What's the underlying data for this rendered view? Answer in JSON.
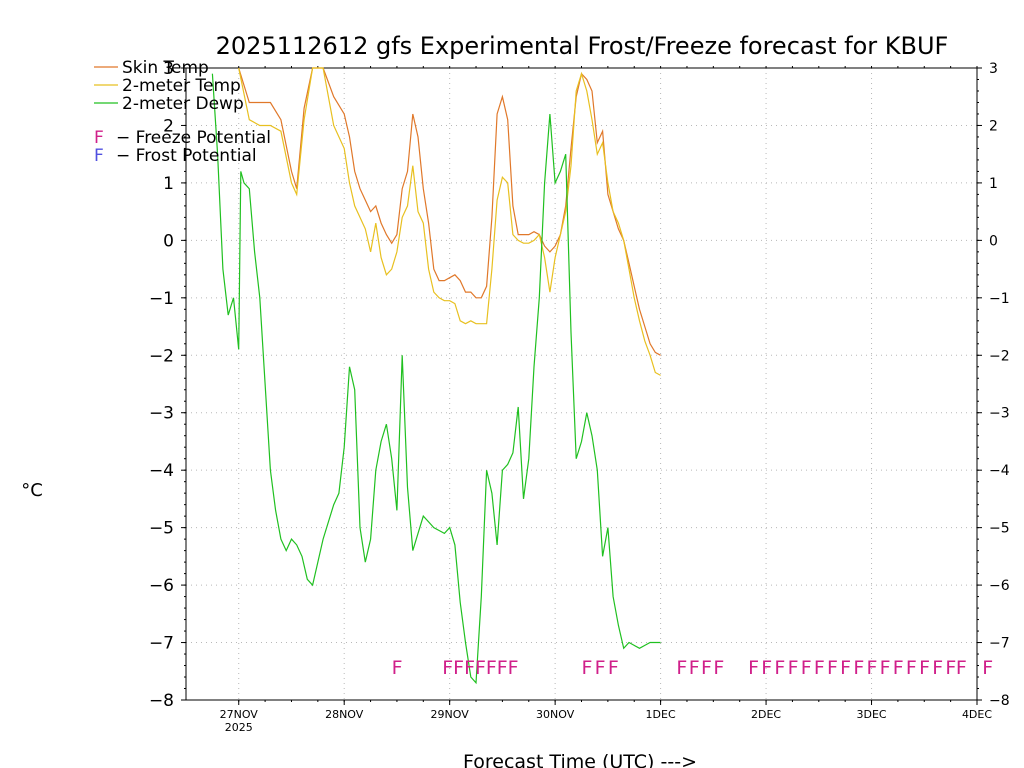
{
  "chart_data": {
    "type": "line",
    "title": "2025112612 gfs Experimental Frost/Freeze forecast for KBUF",
    "ylabel": "°C",
    "xlabel": "Forecast Time (UTC) --->",
    "ylim": [
      -8,
      3
    ],
    "xlim": [
      -0.5,
      7.0
    ],
    "grid": true,
    "x_ticks": [
      {
        "v": 0,
        "label": "27NOV",
        "sub": "2025"
      },
      {
        "v": 1,
        "label": "28NOV",
        "sub": ""
      },
      {
        "v": 2,
        "label": "29NOV",
        "sub": ""
      },
      {
        "v": 3,
        "label": "30NOV",
        "sub": ""
      },
      {
        "v": 4,
        "label": "1DEC",
        "sub": ""
      },
      {
        "v": 5,
        "label": "2DEC",
        "sub": ""
      },
      {
        "v": 6,
        "label": "3DEC",
        "sub": ""
      },
      {
        "v": 7,
        "label": "4DEC",
        "sub": ""
      }
    ],
    "y_ticks": [
      3,
      2,
      1,
      0,
      -1,
      -2,
      -3,
      -4,
      -5,
      -6,
      -7,
      -8
    ],
    "y_tick_labels": [
      "3",
      "2",
      "1",
      "0",
      "−1",
      "−2",
      "−3",
      "−4",
      "−5",
      "−6",
      "−7",
      "−8"
    ],
    "legend": {
      "position": "top-left",
      "entries": [
        {
          "label": "Skin Temp",
          "color": "#e0782a"
        },
        {
          "label": "2-meter Temp",
          "color": "#e8c020"
        },
        {
          "label": "2-meter Dewp",
          "color": "#20c020"
        }
      ],
      "notes": [
        {
          "marker": "F",
          "text": "− Freeze Potential",
          "color": "#d0208a"
        },
        {
          "marker": "F",
          "text": "− Frost Potential",
          "color": "#5050e0"
        }
      ]
    },
    "series": [
      {
        "name": "Skin Temp",
        "color": "#e0782a",
        "x": [
          0.0,
          0.1,
          0.2,
          0.3,
          0.4,
          0.5,
          0.55,
          0.62,
          0.7,
          0.8,
          0.9,
          1.0,
          1.05,
          1.1,
          1.15,
          1.2,
          1.25,
          1.3,
          1.35,
          1.4,
          1.45,
          1.5,
          1.55,
          1.6,
          1.65,
          1.7,
          1.75,
          1.8,
          1.85,
          1.9,
          1.95,
          2.0,
          2.05,
          2.1,
          2.15,
          2.2,
          2.25,
          2.3,
          2.35,
          2.4,
          2.45,
          2.5,
          2.55,
          2.6,
          2.65,
          2.7,
          2.75,
          2.8,
          2.85,
          2.9,
          2.95,
          3.0,
          3.05,
          3.1,
          3.15,
          3.2,
          3.25,
          3.3,
          3.35,
          3.4,
          3.45,
          3.5,
          3.55,
          3.6,
          3.65,
          3.7,
          3.75,
          3.8,
          3.85,
          3.9,
          3.95,
          4.0,
          4.05,
          4.1,
          4.15,
          4.2,
          4.25,
          4.3,
          4.35,
          4.4,
          4.45,
          4.5
        ],
        "values": [
          3.0,
          2.4,
          2.4,
          2.4,
          2.1,
          1.2,
          0.9,
          2.3,
          3.0,
          3.0,
          2.5,
          2.2,
          1.8,
          1.2,
          0.9,
          0.7,
          0.5,
          0.6,
          0.3,
          0.1,
          -0.05,
          0.1,
          0.9,
          1.2,
          2.2,
          1.8,
          0.9,
          0.3,
          -0.5,
          -0.7,
          -0.7,
          -0.65,
          -0.6,
          -0.7,
          -0.9,
          -0.9,
          -1.0,
          -1.0,
          -0.8,
          0.4,
          2.2,
          2.5,
          2.1,
          0.6,
          0.1,
          0.1,
          0.1,
          0.15,
          0.1,
          -0.1,
          -0.2,
          -0.1,
          0.1,
          0.6,
          1.6,
          2.5,
          2.9,
          2.8,
          2.6,
          1.7,
          1.9,
          0.8,
          0.5,
          0.2,
          0.0,
          -0.4,
          -0.8,
          -1.2,
          -1.5,
          -1.8,
          -1.95,
          -2.0,
          null,
          null,
          null,
          null,
          null,
          null,
          null,
          null,
          null,
          null
        ]
      },
      {
        "name": "2-meter Temp",
        "color": "#e8c020",
        "x": [
          0.0,
          0.1,
          0.2,
          0.3,
          0.4,
          0.5,
          0.55,
          0.62,
          0.7,
          0.8,
          0.9,
          1.0,
          1.05,
          1.1,
          1.15,
          1.2,
          1.25,
          1.3,
          1.35,
          1.4,
          1.45,
          1.5,
          1.55,
          1.6,
          1.65,
          1.7,
          1.75,
          1.8,
          1.85,
          1.9,
          1.95,
          2.0,
          2.05,
          2.1,
          2.15,
          2.2,
          2.25,
          2.3,
          2.35,
          2.4,
          2.45,
          2.5,
          2.55,
          2.6,
          2.65,
          2.7,
          2.75,
          2.8,
          2.85,
          2.9,
          2.95,
          3.0,
          3.05,
          3.1,
          3.15,
          3.2,
          3.25,
          3.3,
          3.35,
          3.4,
          3.45,
          3.5,
          3.55,
          3.6,
          3.65,
          3.7,
          3.75,
          3.8,
          3.85,
          3.9,
          3.95,
          4.0
        ],
        "values": [
          3.0,
          2.1,
          2.0,
          2.0,
          1.9,
          1.0,
          0.8,
          2.1,
          3.0,
          3.0,
          2.0,
          1.6,
          1.0,
          0.6,
          0.4,
          0.2,
          -0.2,
          0.3,
          -0.3,
          -0.6,
          -0.5,
          -0.2,
          0.4,
          0.6,
          1.3,
          0.5,
          0.3,
          -0.5,
          -0.9,
          -1.0,
          -1.05,
          -1.05,
          -1.1,
          -1.4,
          -1.45,
          -1.4,
          -1.45,
          -1.45,
          -1.45,
          -0.5,
          0.7,
          1.1,
          1.0,
          0.1,
          0.0,
          -0.05,
          -0.05,
          0.0,
          0.1,
          -0.3,
          -0.9,
          -0.3,
          0.1,
          0.5,
          1.3,
          2.6,
          2.9,
          2.6,
          2.1,
          1.5,
          1.7,
          1.0,
          0.5,
          0.3,
          0.0,
          -0.5,
          -1.0,
          -1.4,
          -1.75,
          -2.0,
          -2.3,
          -2.35
        ]
      },
      {
        "name": "2-meter Dewp",
        "color": "#20c020",
        "x": [
          -0.25,
          -0.2,
          -0.15,
          -0.1,
          -0.05,
          0.0,
          0.02,
          0.05,
          0.1,
          0.15,
          0.2,
          0.25,
          0.3,
          0.35,
          0.4,
          0.45,
          0.5,
          0.55,
          0.6,
          0.65,
          0.7,
          0.8,
          0.9,
          0.95,
          1.0,
          1.05,
          1.1,
          1.15,
          1.2,
          1.25,
          1.3,
          1.35,
          1.4,
          1.45,
          1.5,
          1.55,
          1.6,
          1.65,
          1.7,
          1.75,
          1.8,
          1.85,
          1.9,
          1.95,
          2.0,
          2.05,
          2.1,
          2.15,
          2.2,
          2.25,
          2.3,
          2.35,
          2.4,
          2.45,
          2.5,
          2.55,
          2.6,
          2.65,
          2.7,
          2.75,
          2.8,
          2.85,
          2.9,
          2.95,
          3.0,
          3.05,
          3.1,
          3.15,
          3.2,
          3.25,
          3.3,
          3.35,
          3.4,
          3.45,
          3.5,
          3.55,
          3.6,
          3.65,
          3.7,
          3.75,
          3.8,
          3.85,
          3.9,
          3.95,
          4.0
        ],
        "values": [
          2.9,
          1.5,
          -0.5,
          -1.3,
          -1.0,
          -1.9,
          1.2,
          1.0,
          0.9,
          -0.2,
          -1.0,
          -2.5,
          -4.0,
          -4.7,
          -5.2,
          -5.4,
          -5.2,
          -5.3,
          -5.5,
          -5.9,
          -6.0,
          -5.2,
          -4.6,
          -4.4,
          -3.6,
          -2.2,
          -2.6,
          -5.0,
          -5.6,
          -5.2,
          -4.0,
          -3.5,
          -3.2,
          -3.8,
          -4.7,
          -2.0,
          -4.3,
          -5.4,
          -5.1,
          -4.8,
          -4.9,
          -5.0,
          -5.05,
          -5.1,
          -5.0,
          -5.3,
          -6.3,
          -7.0,
          -7.6,
          -7.7,
          -6.2,
          -4.0,
          -4.4,
          -5.3,
          -4.0,
          -3.9,
          -3.7,
          -2.9,
          -4.5,
          -3.8,
          -2.2,
          -1.0,
          1.0,
          2.2,
          1.0,
          1.2,
          1.5,
          -1.6,
          -3.8,
          -3.5,
          -3.0,
          -3.4,
          -4.0,
          -5.5,
          -5.0,
          -6.2,
          -6.7,
          -7.1,
          -7.0,
          -7.05,
          -7.1,
          -7.05,
          -7.0,
          -7.0,
          -7.0
        ]
      }
    ],
    "freeze_potential_markers": "F",
    "freeze_potential_rows": [
      {
        "x_start": 1.45,
        "x_end": 1.55,
        "count": 1
      },
      {
        "x_start": 1.93,
        "x_end": 2.55,
        "count": 7
      },
      {
        "x_start": 3.25,
        "x_end": 3.5,
        "count": 3
      },
      {
        "x_start": 4.15,
        "x_end": 4.5,
        "count": 4
      },
      {
        "x_start": 4.83,
        "x_end": 6.7,
        "count": 16
      },
      {
        "x_start": 6.8,
        "x_end": 7.05,
        "count": 2
      }
    ]
  }
}
